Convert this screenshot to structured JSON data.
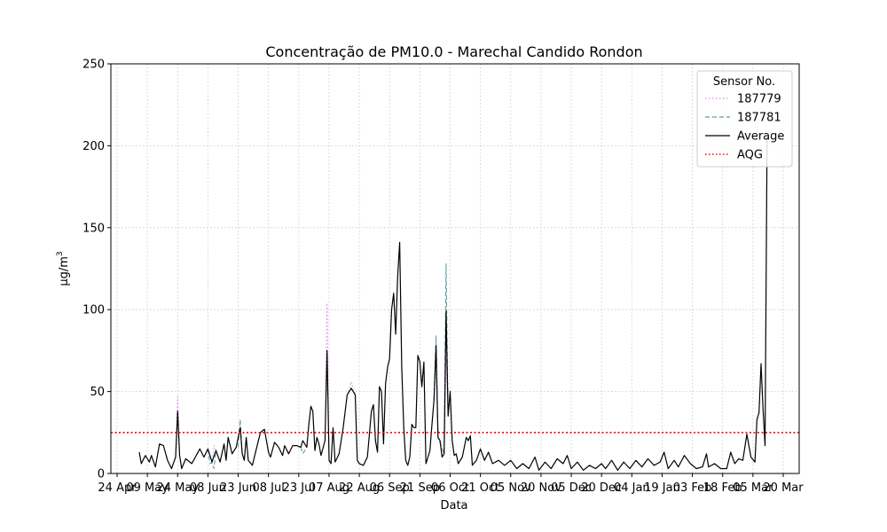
{
  "chart_data": {
    "type": "line",
    "title": "Concentração de PM10.0 - Marechal Candido Rondon",
    "xlabel": "Data",
    "ylabel_main": "µg/m",
    "ylabel_sup": "3",
    "ylim": [
      0,
      250
    ],
    "y_ticks": [
      0,
      50,
      100,
      150,
      200,
      250
    ],
    "x_ticks": [
      {
        "date": "2022-04-24",
        "label": "24 Apr"
      },
      {
        "date": "2022-05-09",
        "label": "09 May"
      },
      {
        "date": "2022-05-24",
        "label": "24 May"
      },
      {
        "date": "2022-06-08",
        "label": "08 Jun"
      },
      {
        "date": "2022-06-23",
        "label": "23 Jun"
      },
      {
        "date": "2022-07-08",
        "label": "08 Jul"
      },
      {
        "date": "2022-07-23",
        "label": "23 Jul"
      },
      {
        "date": "2022-08-07",
        "label": "07 Aug"
      },
      {
        "date": "2022-08-22",
        "label": "22 Aug"
      },
      {
        "date": "2022-09-06",
        "label": "06 Sep"
      },
      {
        "date": "2022-09-21",
        "label": "21 Sep"
      },
      {
        "date": "2022-10-06",
        "label": "06 Oct"
      },
      {
        "date": "2022-10-21",
        "label": "21 Oct"
      },
      {
        "date": "2022-11-05",
        "label": "05 Nov"
      },
      {
        "date": "2022-11-20",
        "label": "20 Nov"
      },
      {
        "date": "2022-12-05",
        "label": "05 Dec"
      },
      {
        "date": "2022-12-20",
        "label": "20 Dec"
      },
      {
        "date": "2023-01-04",
        "label": "04 Jan"
      },
      {
        "date": "2023-01-19",
        "label": "19 Jan"
      },
      {
        "date": "2023-02-03",
        "label": "03 Feb"
      },
      {
        "date": "2023-02-18",
        "label": "18 Feb"
      },
      {
        "date": "2023-03-05",
        "label": "05 Mar"
      },
      {
        "date": "2023-03-20",
        "label": "20 Mar"
      }
    ],
    "grid": true,
    "legend": {
      "title": "Sensor No.",
      "placement": "top-right",
      "entries": [
        {
          "label": "187779",
          "color": "#ee82ee",
          "style": "dotted"
        },
        {
          "label": "187781",
          "color": "#5f9ea0",
          "style": "dashed"
        },
        {
          "label": "Average",
          "color": "#000000",
          "style": "solid"
        },
        {
          "label": "AQG",
          "color": "#ff0000",
          "style": "dotted"
        }
      ]
    },
    "aqg_value": 25,
    "series": [
      {
        "name": "Average",
        "color": "#000000",
        "points": [
          [
            "2022-05-05",
            13
          ],
          [
            "2022-05-06",
            6
          ],
          [
            "2022-05-08",
            11
          ],
          [
            "2022-05-10",
            7
          ],
          [
            "2022-05-11",
            11
          ],
          [
            "2022-05-13",
            4
          ],
          [
            "2022-05-15",
            18
          ],
          [
            "2022-05-17",
            17
          ],
          [
            "2022-05-19",
            8
          ],
          [
            "2022-05-21",
            3
          ],
          [
            "2022-05-23",
            10
          ],
          [
            "2022-05-24",
            38
          ],
          [
            "2022-05-25",
            11
          ],
          [
            "2022-05-26",
            3
          ],
          [
            "2022-05-28",
            9
          ],
          [
            "2022-05-31",
            6
          ],
          [
            "2022-06-04",
            15
          ],
          [
            "2022-06-06",
            10
          ],
          [
            "2022-06-08",
            15
          ],
          [
            "2022-06-10",
            7
          ],
          [
            "2022-06-12",
            14
          ],
          [
            "2022-06-14",
            7
          ],
          [
            "2022-06-16",
            18
          ],
          [
            "2022-06-17",
            8
          ],
          [
            "2022-06-18",
            22
          ],
          [
            "2022-06-20",
            12
          ],
          [
            "2022-06-22",
            16
          ],
          [
            "2022-06-24",
            28
          ],
          [
            "2022-06-25",
            12
          ],
          [
            "2022-06-26",
            8
          ],
          [
            "2022-06-27",
            22
          ],
          [
            "2022-06-28",
            8
          ],
          [
            "2022-06-30",
            5
          ],
          [
            "2022-07-02",
            15
          ],
          [
            "2022-07-04",
            25
          ],
          [
            "2022-07-06",
            27
          ],
          [
            "2022-07-08",
            13
          ],
          [
            "2022-07-09",
            10
          ],
          [
            "2022-07-11",
            19
          ],
          [
            "2022-07-13",
            16
          ],
          [
            "2022-07-15",
            11
          ],
          [
            "2022-07-16",
            17
          ],
          [
            "2022-07-18",
            12
          ],
          [
            "2022-07-20",
            17
          ],
          [
            "2022-07-22",
            17
          ],
          [
            "2022-07-24",
            16
          ],
          [
            "2022-07-25",
            20
          ],
          [
            "2022-07-27",
            16
          ],
          [
            "2022-07-28",
            30
          ],
          [
            "2022-07-29",
            41
          ],
          [
            "2022-07-30",
            38
          ],
          [
            "2022-07-31",
            14
          ],
          [
            "2022-08-01",
            22
          ],
          [
            "2022-08-02",
            18
          ],
          [
            "2022-08-03",
            11
          ],
          [
            "2022-08-05",
            20
          ],
          [
            "2022-08-06",
            75
          ],
          [
            "2022-08-07",
            8
          ],
          [
            "2022-08-08",
            6
          ],
          [
            "2022-08-09",
            28
          ],
          [
            "2022-08-10",
            7
          ],
          [
            "2022-08-12",
            12
          ],
          [
            "2022-08-14",
            28
          ],
          [
            "2022-08-16",
            48
          ],
          [
            "2022-08-18",
            52
          ],
          [
            "2022-08-20",
            48
          ],
          [
            "2022-08-21",
            8
          ],
          [
            "2022-08-22",
            6
          ],
          [
            "2022-08-24",
            5
          ],
          [
            "2022-08-26",
            10
          ],
          [
            "2022-08-28",
            38
          ],
          [
            "2022-08-29",
            42
          ],
          [
            "2022-08-30",
            20
          ],
          [
            "2022-08-31",
            13
          ],
          [
            "2022-09-01",
            53
          ],
          [
            "2022-09-02",
            50
          ],
          [
            "2022-09-03",
            18
          ],
          [
            "2022-09-04",
            55
          ],
          [
            "2022-09-05",
            65
          ],
          [
            "2022-09-06",
            70
          ],
          [
            "2022-09-07",
            100
          ],
          [
            "2022-09-08",
            110
          ],
          [
            "2022-09-09",
            85
          ],
          [
            "2022-09-10",
            120
          ],
          [
            "2022-09-11",
            141
          ],
          [
            "2022-09-12",
            65
          ],
          [
            "2022-09-13",
            28
          ],
          [
            "2022-09-14",
            8
          ],
          [
            "2022-09-15",
            5
          ],
          [
            "2022-09-16",
            10
          ],
          [
            "2022-09-17",
            30
          ],
          [
            "2022-09-18",
            28
          ],
          [
            "2022-09-19",
            28
          ],
          [
            "2022-09-20",
            72
          ],
          [
            "2022-09-21",
            68
          ],
          [
            "2022-09-22",
            53
          ],
          [
            "2022-09-23",
            68
          ],
          [
            "2022-09-24",
            6
          ],
          [
            "2022-09-25",
            10
          ],
          [
            "2022-09-26",
            14
          ],
          [
            "2022-09-27",
            30
          ],
          [
            "2022-09-28",
            45
          ],
          [
            "2022-09-29",
            78
          ],
          [
            "2022-09-30",
            22
          ],
          [
            "2022-10-01",
            20
          ],
          [
            "2022-10-02",
            10
          ],
          [
            "2022-10-03",
            12
          ],
          [
            "2022-10-04",
            99
          ],
          [
            "2022-10-05",
            35
          ],
          [
            "2022-10-06",
            50
          ],
          [
            "2022-10-07",
            20
          ],
          [
            "2022-10-08",
            11
          ],
          [
            "2022-10-09",
            12
          ],
          [
            "2022-10-10",
            6
          ],
          [
            "2022-10-12",
            10
          ],
          [
            "2022-10-14",
            22
          ],
          [
            "2022-10-15",
            20
          ],
          [
            "2022-10-16",
            23
          ],
          [
            "2022-10-17",
            5
          ],
          [
            "2022-10-19",
            8
          ],
          [
            "2022-10-21",
            15
          ],
          [
            "2022-10-23",
            8
          ],
          [
            "2022-10-25",
            13
          ],
          [
            "2022-10-27",
            6
          ],
          [
            "2022-10-30",
            8
          ],
          [
            "2022-11-02",
            5
          ],
          [
            "2022-11-05",
            8
          ],
          [
            "2022-11-08",
            3
          ],
          [
            "2022-11-11",
            6
          ],
          [
            "2022-11-14",
            3
          ],
          [
            "2022-11-17",
            10
          ],
          [
            "2022-11-19",
            2
          ],
          [
            "2022-11-22",
            7
          ],
          [
            "2022-11-25",
            3
          ],
          [
            "2022-11-28",
            9
          ],
          [
            "2022-12-01",
            6
          ],
          [
            "2022-12-03",
            11
          ],
          [
            "2022-12-05",
            3
          ],
          [
            "2022-12-08",
            7
          ],
          [
            "2022-12-11",
            2
          ],
          [
            "2022-12-14",
            5
          ],
          [
            "2022-12-17",
            3
          ],
          [
            "2022-12-20",
            6
          ],
          [
            "2022-12-22",
            3
          ],
          [
            "2022-12-25",
            8
          ],
          [
            "2022-12-28",
            2
          ],
          [
            "2022-12-31",
            7
          ],
          [
            "2023-01-03",
            3
          ],
          [
            "2023-01-06",
            8
          ],
          [
            "2023-01-09",
            4
          ],
          [
            "2023-01-12",
            9
          ],
          [
            "2023-01-15",
            5
          ],
          [
            "2023-01-18",
            7
          ],
          [
            "2023-01-20",
            13
          ],
          [
            "2023-01-22",
            3
          ],
          [
            "2023-01-25",
            8
          ],
          [
            "2023-01-27",
            4
          ],
          [
            "2023-01-30",
            11
          ],
          [
            "2023-02-02",
            6
          ],
          [
            "2023-02-05",
            3
          ],
          [
            "2023-02-08",
            4
          ],
          [
            "2023-02-10",
            12
          ],
          [
            "2023-02-11",
            4
          ],
          [
            "2023-02-14",
            6
          ],
          [
            "2023-02-17",
            3
          ],
          [
            "2023-02-20",
            3
          ],
          [
            "2023-02-22",
            13
          ],
          [
            "2023-02-24",
            6
          ],
          [
            "2023-02-26",
            9
          ],
          [
            "2023-02-28",
            8
          ],
          [
            "2023-03-02",
            24
          ],
          [
            "2023-03-04",
            10
          ],
          [
            "2023-03-06",
            7
          ],
          [
            "2023-03-07",
            33
          ],
          [
            "2023-03-08",
            37
          ],
          [
            "2023-03-09",
            67
          ],
          [
            "2023-03-10",
            40
          ],
          [
            "2023-03-11",
            17
          ],
          [
            "2023-03-12",
            205
          ]
        ]
      },
      {
        "name": "187779",
        "color": "#ee82ee",
        "points": [
          [
            "2022-05-23",
            12
          ],
          [
            "2022-05-24",
            47
          ],
          [
            "2022-05-25",
            12
          ],
          [
            "2022-06-10",
            6
          ],
          [
            "2022-06-11",
            17
          ],
          [
            "2022-06-12",
            14
          ],
          [
            "2022-08-05",
            20
          ],
          [
            "2022-08-06",
            104
          ],
          [
            "2022-08-07",
            8
          ],
          [
            "2022-08-16",
            48
          ],
          [
            "2022-08-18",
            56
          ],
          [
            "2022-08-20",
            48
          ],
          [
            "2022-09-28",
            45
          ],
          [
            "2022-09-29",
            70
          ],
          [
            "2022-09-30",
            22
          ],
          [
            "2022-10-03",
            12
          ],
          [
            "2022-10-04",
            70
          ],
          [
            "2022-10-05",
            35
          ]
        ]
      },
      {
        "name": "187781",
        "color": "#5f9ea0",
        "points": [
          [
            "2022-06-08",
            15
          ],
          [
            "2022-06-09",
            6
          ],
          [
            "2022-06-10",
            7
          ],
          [
            "2022-06-11",
            3
          ],
          [
            "2022-06-12",
            14
          ],
          [
            "2022-06-23",
            16
          ],
          [
            "2022-06-24",
            33
          ],
          [
            "2022-06-25",
            12
          ],
          [
            "2022-07-24",
            16
          ],
          [
            "2022-07-25",
            12
          ],
          [
            "2022-07-27",
            16
          ],
          [
            "2022-09-28",
            45
          ],
          [
            "2022-09-29",
            84
          ],
          [
            "2022-09-30",
            22
          ],
          [
            "2022-10-03",
            12
          ],
          [
            "2022-10-04",
            128
          ],
          [
            "2022-10-05",
            35
          ]
        ]
      }
    ]
  }
}
